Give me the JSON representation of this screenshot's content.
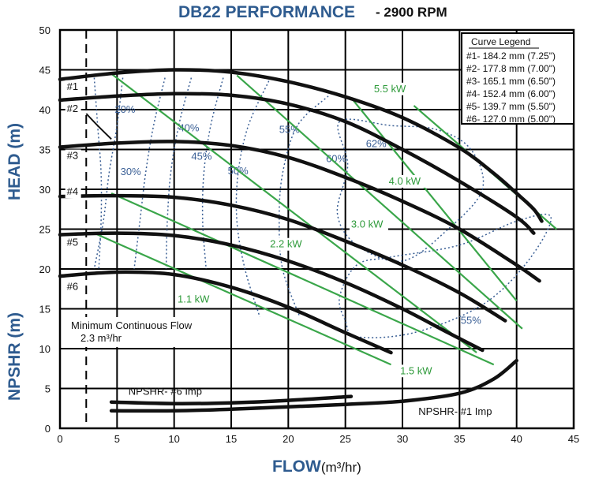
{
  "chart_data": {
    "type": "line",
    "title": "DB22 PERFORMANCE",
    "subtitle": "- 2900 RPM",
    "xlabel": "FLOW",
    "xlabel_unit": "(m³/hr)",
    "ylabel_head": "HEAD (m)",
    "ylabel_npshr": "NPSHR (m)",
    "xlim": [
      0,
      45
    ],
    "ylim": [
      0,
      50
    ],
    "x_ticks": [
      "0",
      "5",
      "10",
      "15",
      "20",
      "25",
      "30",
      "35",
      "40",
      "45"
    ],
    "y_ticks": [
      "0",
      "5",
      "10",
      "15",
      "20",
      "25",
      "30",
      "35",
      "40",
      "45",
      "50"
    ],
    "grid": true,
    "legend_position": "top-right",
    "legend": {
      "title": "Curve Legend",
      "entries": [
        "#1- 184.2 mm (7.25\")",
        "#2- 177.8 mm (7.00\")",
        "#3- 165.1 mm (6.50\")",
        "#4- 152.4 mm (6.00\")",
        "#5- 139.7 mm (5.50\")",
        "#6- 127.0 mm (5.00\")"
      ]
    },
    "impeller_curves": [
      {
        "label": "#1",
        "points": [
          [
            0,
            43.8
          ],
          [
            5,
            44.6
          ],
          [
            10,
            45
          ],
          [
            15,
            44.7
          ],
          [
            20,
            43.5
          ],
          [
            25,
            41.6
          ],
          [
            30,
            39
          ],
          [
            35,
            35.2
          ],
          [
            38,
            32
          ],
          [
            40,
            29.5
          ],
          [
            41.5,
            27.5
          ],
          [
            42.2,
            26
          ]
        ]
      },
      {
        "label": "#2",
        "points": [
          [
            0,
            41.2
          ],
          [
            5,
            41.7
          ],
          [
            10,
            42
          ],
          [
            15,
            41.8
          ],
          [
            20,
            40.7
          ],
          [
            25,
            38.5
          ],
          [
            30,
            35
          ],
          [
            35,
            31
          ],
          [
            40,
            26.5
          ],
          [
            41.5,
            24.5
          ]
        ]
      },
      {
        "label": "#3",
        "points": [
          [
            0,
            35.3
          ],
          [
            5,
            35.8
          ],
          [
            10,
            36
          ],
          [
            15,
            35.5
          ],
          [
            20,
            34
          ],
          [
            25,
            31.5
          ],
          [
            30,
            28.5
          ],
          [
            35,
            25
          ],
          [
            40,
            20.5
          ],
          [
            42,
            18.5
          ]
        ]
      },
      {
        "label": "#4",
        "points": [
          [
            0,
            29.1
          ],
          [
            5,
            29.2
          ],
          [
            10,
            29
          ],
          [
            15,
            28
          ],
          [
            20,
            26.2
          ],
          [
            25,
            23.5
          ],
          [
            30,
            20.5
          ],
          [
            35,
            17
          ],
          [
            39,
            13.5
          ]
        ]
      },
      {
        "label": "#5",
        "points": [
          [
            0,
            24.3
          ],
          [
            5,
            24.5
          ],
          [
            10,
            24.2
          ],
          [
            15,
            23
          ],
          [
            20,
            21
          ],
          [
            25,
            18.3
          ],
          [
            30,
            15
          ],
          [
            34,
            12
          ],
          [
            37,
            9.8
          ]
        ]
      },
      {
        "label": "#6",
        "points": [
          [
            0,
            19.1
          ],
          [
            5,
            19.6
          ],
          [
            10,
            19.3
          ],
          [
            15,
            17.7
          ],
          [
            20,
            15.2
          ],
          [
            25,
            12
          ],
          [
            29,
            9.5
          ]
        ]
      }
    ],
    "efficiency_labels": [
      "20%",
      "30%",
      "40%",
      "45%",
      "50%",
      "55%",
      "60%",
      "62%",
      "55%"
    ],
    "power_labels": [
      "5.5 kW",
      "4.0 kW",
      "3.0 kW",
      "2.2 kW",
      "1.5 kW",
      "1.1 kW"
    ],
    "power_lines": [
      {
        "label": "5.5 kW",
        "points": [
          [
            31,
            40.5
          ],
          [
            43.5,
            25
          ]
        ]
      },
      {
        "label": "4.0 kW",
        "points": [
          [
            25.5,
            41.5
          ],
          [
            40,
            16
          ]
        ]
      },
      {
        "label": "3.0 kW",
        "points": [
          [
            15.5,
            44.3
          ],
          [
            40.5,
            12.5
          ]
        ]
      },
      {
        "label": "2.2 kW",
        "points": [
          [
            4.5,
            44.5
          ],
          [
            36.5,
            9.5
          ]
        ]
      },
      {
        "label": "1.5 kW",
        "points": [
          [
            4.5,
            29.5
          ],
          [
            38,
            8
          ]
        ]
      },
      {
        "label": "1.1 kW",
        "points": [
          [
            3,
            24.5
          ],
          [
            29,
            8
          ]
        ]
      }
    ],
    "npshr_curves": [
      {
        "label": "NPSHR- #6 Imp",
        "points": [
          [
            4.5,
            3.3
          ],
          [
            10,
            3.1
          ],
          [
            15,
            3.2
          ],
          [
            20,
            3.5
          ],
          [
            25.5,
            4
          ]
        ]
      },
      {
        "label": "NPSHR- #1  Imp",
        "points": [
          [
            4.5,
            2.2
          ],
          [
            10,
            2.2
          ],
          [
            15,
            2.4
          ],
          [
            20,
            2.7
          ],
          [
            25,
            3
          ],
          [
            30,
            3.4
          ],
          [
            35,
            4.4
          ],
          [
            38,
            6.2
          ],
          [
            40,
            8.5
          ]
        ]
      }
    ],
    "min_continuous_flow": {
      "x": 2.3,
      "label_line1": "Minimum Continuous Flow",
      "label_line2": "2.3 m³/hr"
    }
  }
}
